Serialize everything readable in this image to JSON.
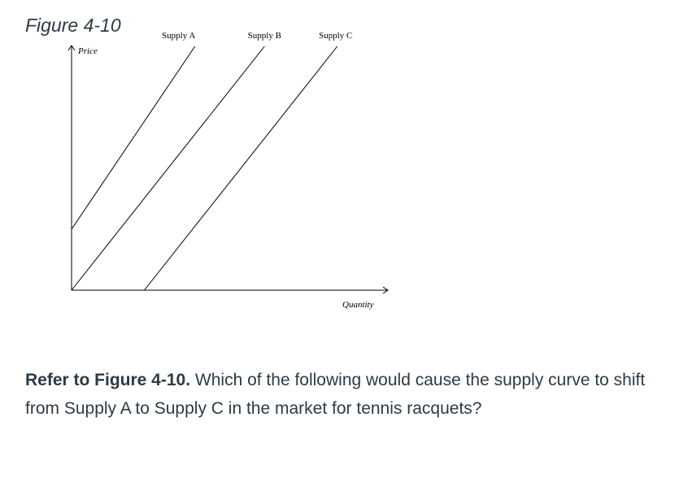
{
  "figure_title": "Figure 4-10",
  "question": {
    "reference": "Refer to Figure 4-10.",
    "text": "Which of the following would cause the supply curve to shift from Supply A to Supply C in the market for tennis racquets?"
  },
  "chart_data": {
    "type": "line",
    "title": "",
    "xlabel": "Quantity",
    "ylabel": "Price",
    "xlim": [
      0,
      100
    ],
    "ylim": [
      0,
      100
    ],
    "grid": false,
    "legend": "none",
    "series": [
      {
        "name": "Supply A",
        "x": [
          0,
          39
        ],
        "y": [
          25,
          100
        ]
      },
      {
        "name": "Supply B",
        "x": [
          0,
          61
        ],
        "y": [
          0,
          100
        ]
      },
      {
        "name": "Supply C",
        "x": [
          23,
          84
        ],
        "y": [
          0,
          100
        ]
      }
    ]
  }
}
